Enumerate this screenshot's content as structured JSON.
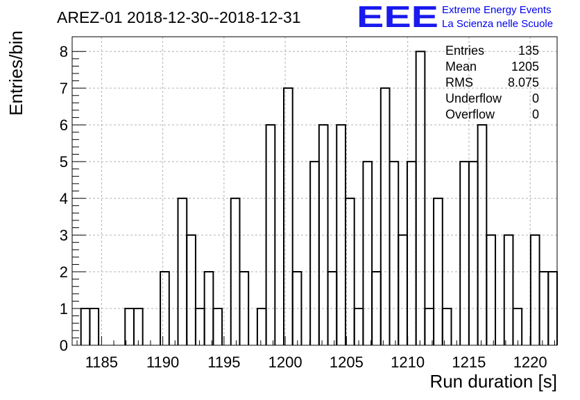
{
  "chart_data": {
    "type": "bar",
    "title": "AREZ-01 2018-12-30--2018-12-31",
    "xlabel": "Run duration [s]",
    "ylabel": "Entries/bin",
    "xlim": [
      1182.6,
      1222.2
    ],
    "ylim": [
      0,
      8.4
    ],
    "grid": true,
    "bin_width": 0.72,
    "bins": [
      {
        "x": 1182.6,
        "y": 0
      },
      {
        "x": 1183.32,
        "y": 1
      },
      {
        "x": 1184.04,
        "y": 1
      },
      {
        "x": 1184.76,
        "y": 0
      },
      {
        "x": 1185.48,
        "y": 0
      },
      {
        "x": 1186.2,
        "y": 0
      },
      {
        "x": 1186.92,
        "y": 1
      },
      {
        "x": 1187.64,
        "y": 1
      },
      {
        "x": 1188.36,
        "y": 0
      },
      {
        "x": 1189.08,
        "y": 0
      },
      {
        "x": 1189.8,
        "y": 2
      },
      {
        "x": 1190.52,
        "y": 0
      },
      {
        "x": 1191.24,
        "y": 4
      },
      {
        "x": 1191.96,
        "y": 3
      },
      {
        "x": 1192.68,
        "y": 1
      },
      {
        "x": 1193.4,
        "y": 2
      },
      {
        "x": 1194.12,
        "y": 1
      },
      {
        "x": 1194.84,
        "y": 0
      },
      {
        "x": 1195.56,
        "y": 4
      },
      {
        "x": 1196.28,
        "y": 2
      },
      {
        "x": 1197.0,
        "y": 0
      },
      {
        "x": 1197.72,
        "y": 1
      },
      {
        "x": 1198.44,
        "y": 6
      },
      {
        "x": 1199.16,
        "y": 0
      },
      {
        "x": 1199.88,
        "y": 7
      },
      {
        "x": 1200.6,
        "y": 2
      },
      {
        "x": 1201.32,
        "y": 0
      },
      {
        "x": 1202.04,
        "y": 5
      },
      {
        "x": 1202.76,
        "y": 6
      },
      {
        "x": 1203.48,
        "y": 2
      },
      {
        "x": 1204.2,
        "y": 6
      },
      {
        "x": 1204.92,
        "y": 4
      },
      {
        "x": 1205.64,
        "y": 1
      },
      {
        "x": 1206.36,
        "y": 5
      },
      {
        "x": 1207.08,
        "y": 2
      },
      {
        "x": 1207.8,
        "y": 7
      },
      {
        "x": 1208.52,
        "y": 5
      },
      {
        "x": 1209.24,
        "y": 3
      },
      {
        "x": 1209.96,
        "y": 5
      },
      {
        "x": 1210.68,
        "y": 8
      },
      {
        "x": 1211.4,
        "y": 1
      },
      {
        "x": 1212.12,
        "y": 4
      },
      {
        "x": 1212.84,
        "y": 1
      },
      {
        "x": 1213.56,
        "y": 0
      },
      {
        "x": 1214.28,
        "y": 5
      },
      {
        "x": 1215.0,
        "y": 5
      },
      {
        "x": 1215.72,
        "y": 6
      },
      {
        "x": 1216.44,
        "y": 3
      },
      {
        "x": 1217.16,
        "y": 0
      },
      {
        "x": 1217.88,
        "y": 3
      },
      {
        "x": 1218.6,
        "y": 1
      },
      {
        "x": 1219.32,
        "y": 0
      },
      {
        "x": 1220.04,
        "y": 3
      },
      {
        "x": 1220.76,
        "y": 2
      },
      {
        "x": 1221.48,
        "y": 2
      }
    ],
    "xticks": [
      1185,
      1190,
      1195,
      1200,
      1205,
      1210,
      1215,
      1220
    ],
    "yticks": [
      0,
      1,
      2,
      3,
      4,
      5,
      6,
      7,
      8
    ],
    "line_color": "#000000",
    "grid_color": "#b0b0b0"
  },
  "stats": {
    "rows": [
      {
        "label": "Entries",
        "value": "135"
      },
      {
        "label": "Mean",
        "value": "1205"
      },
      {
        "label": "RMS",
        "value": "8.075"
      },
      {
        "label": "Underflow",
        "value": "0"
      },
      {
        "label": "Overflow",
        "value": "0"
      }
    ]
  },
  "logo": {
    "mark": "EEE",
    "line1": "Extreme Energy Events",
    "line2": "La Scienza nelle Scuole",
    "color": "#0000ee"
  }
}
